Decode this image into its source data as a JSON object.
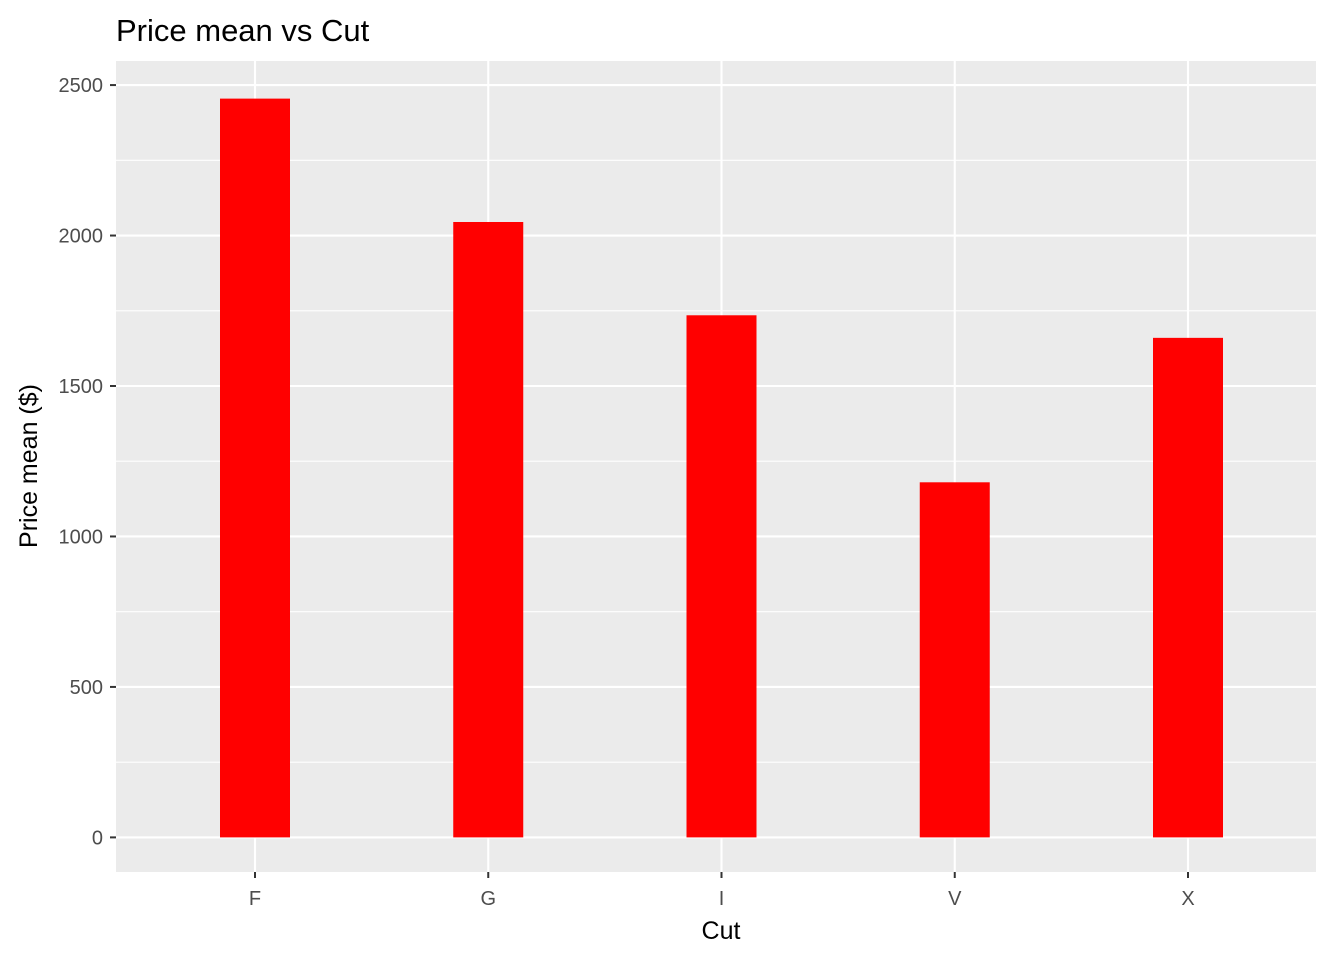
{
  "chart_data": {
    "type": "bar",
    "title": "Price mean vs Cut",
    "xlabel": "Cut",
    "ylabel": "Price mean ($)",
    "categories": [
      "F",
      "G",
      "I",
      "V",
      "X"
    ],
    "values": [
      2455,
      2045,
      1735,
      1180,
      1660
    ],
    "ylim": [
      -115,
      2580
    ],
    "yticks": [
      0,
      500,
      1000,
      1500,
      2000,
      2500
    ],
    "grid": true,
    "legend": "none",
    "bar_color": "#ff0000",
    "panel_background": "#ebebeb",
    "grid_color": "#ffffff"
  }
}
